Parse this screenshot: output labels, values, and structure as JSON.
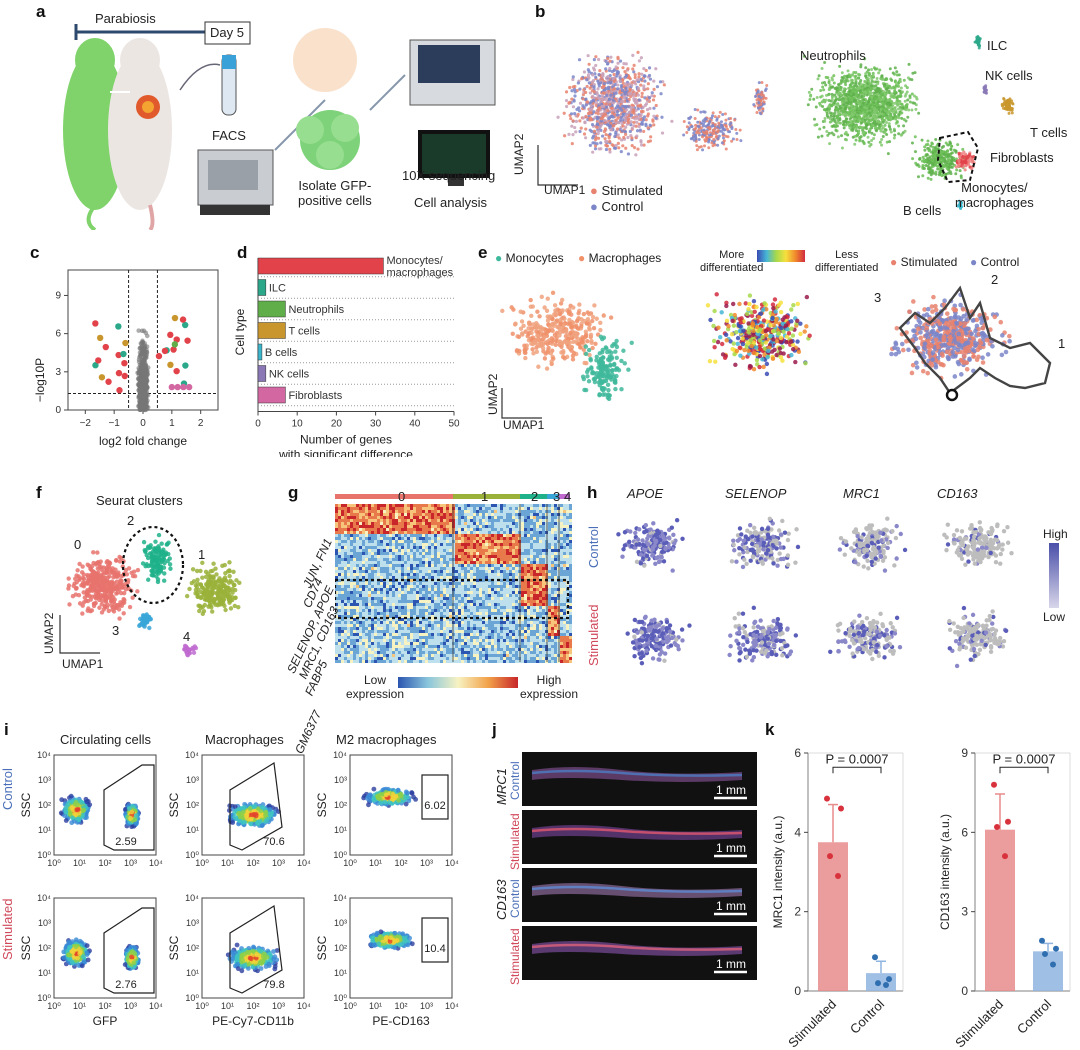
{
  "panels": {
    "a": "a",
    "b": "b",
    "c": "c",
    "d": "d",
    "e": "e",
    "f": "f",
    "g": "g",
    "h": "h",
    "i": "i",
    "j": "j",
    "k": "k"
  },
  "a": {
    "parabiosis": "Parabiosis",
    "day": "Day 5",
    "facs": "FACS",
    "isolate": "Isolate GFP-\npositive cells",
    "seq": "10X sequencing",
    "analysis": "Cell analysis"
  },
  "b": {
    "neutrophils": "Neutrophils",
    "ilc": "ILC",
    "nk": "NK cells",
    "t": "T cells",
    "fibro": "Fibroblasts",
    "mono": "Monocytes/\nmacrophages",
    "bcells": "B cells",
    "umap1": "UMAP1",
    "umap2": "UMAP2",
    "legend_stim": "Stimulated",
    "legend_ctrl": "Control",
    "color_stim": "#e8826f",
    "color_ctrl": "#7b86c9"
  },
  "c": {
    "xlabel": "log2 fold change",
    "ylabel": "−log10P",
    "xticks": [
      "−2",
      "−1",
      "0",
      "1",
      "2"
    ],
    "yticks": [
      "0",
      "3",
      "6",
      "9"
    ]
  },
  "d": {
    "ylabel": "Cell type",
    "xlabel": "Number of genes\nwith significant difference",
    "xticks": [
      "0",
      "10",
      "20",
      "30",
      "40",
      "50"
    ]
  },
  "e": {
    "legend_mono": "Monocytes",
    "legend_mac": "Macrophages",
    "more_diff": "More\ndifferentiated",
    "less_diff": "Less\ndifferentiated",
    "legend_stim": "Stimulated",
    "legend_ctrl": "Control",
    "umap1": "UMAP1",
    "umap2": "UMAP2",
    "traj": [
      "1",
      "2",
      "3"
    ]
  },
  "f": {
    "title": "Seurat clusters",
    "umap1": "UMAP1",
    "umap2": "UMAP2",
    "clusters": [
      "0",
      "1",
      "2",
      "3",
      "4"
    ]
  },
  "g": {
    "top": [
      "0",
      "1",
      "2",
      "3",
      "4"
    ],
    "genes": [
      "JUN, FN1",
      "CD74",
      "SELENOP, APOE\nMRC1, CD163",
      "FABP5",
      "GM6377"
    ],
    "low": "Low\nexpression",
    "high": "High\nexpression"
  },
  "h": {
    "genes": [
      "APOE",
      "SELENOP",
      "MRC1",
      "CD163"
    ],
    "row_ctrl": "Control",
    "row_stim": "Stimulated",
    "high": "High",
    "low": "Low"
  },
  "i": {
    "col_titles": [
      "Circulating cells",
      "Macrophages",
      "M2 macrophages"
    ],
    "row_ctrl": "Control",
    "row_stim": "Stimulated",
    "ylabel": "SSC",
    "xlabels": [
      "GFP",
      "PE-Cy7-CD11b",
      "PE-CD163"
    ],
    "values_ctrl": [
      "2.59",
      "70.6",
      "6.02"
    ],
    "values_stim": [
      "2.76",
      "79.8",
      "10.4"
    ],
    "yticks": [
      "10⁰",
      "10¹",
      "10²",
      "10³",
      "10⁴"
    ],
    "xticks": [
      "10⁰",
      "10¹",
      "10²",
      "10³",
      "10⁴"
    ]
  },
  "j": {
    "mrc1": "MRC1",
    "cd163": "CD163",
    "ctrl": "Control",
    "stim": "Stimulated",
    "scale": "1 mm"
  },
  "k": {
    "pvalue": "P = 0.0007",
    "ylabel_left": "MRC1 intensity (a.u.)",
    "ylabel_right": "CD163 intensity (a.u.)",
    "categories": [
      "Stimulated",
      "Control"
    ]
  },
  "chart_data": [
    {
      "type": "bar",
      "title": "",
      "categories": [
        "Monocytes/\nmacrophages",
        "ILC",
        "Neutrophils",
        "T cells",
        "B cells",
        "NK cells",
        "Fibroblasts"
      ],
      "values": [
        32,
        2,
        7,
        7,
        1,
        2,
        7
      ],
      "colors": [
        "#e2434a",
        "#2ba88a",
        "#5fae4a",
        "#c9962d",
        "#3bb6cc",
        "#8a78b6",
        "#d367a2"
      ],
      "xlabel": "Number of genes with significant difference",
      "ylabel": "Cell type",
      "xlim": [
        0,
        50
      ]
    },
    {
      "type": "bar",
      "categories": [
        "Stimulated",
        "Control"
      ],
      "values": [
        3.75,
        0.45
      ],
      "errors": [
        0.95,
        0.3
      ],
      "points": [
        [
          4.85,
          4.6,
          3.4,
          2.9
        ],
        [
          0.85,
          0.3,
          0.2,
          0.15
        ]
      ],
      "colors": [
        "#e88b8b",
        "#8fb4e0"
      ],
      "ylabel": "MRC1 intensity (a.u.)",
      "ylim": [
        0,
        6
      ],
      "yticks": [
        0,
        2,
        4,
        6
      ],
      "p": "P = 0.0007"
    },
    {
      "type": "bar",
      "categories": [
        "Stimulated",
        "Control"
      ],
      "values": [
        6.1,
        1.5
      ],
      "errors": [
        1.35,
        0.3
      ],
      "points": [
        [
          7.8,
          6.4,
          6.2,
          5.1
        ],
        [
          1.9,
          1.6,
          1.4,
          1.0
        ]
      ],
      "colors": [
        "#e88b8b",
        "#8fb4e0"
      ],
      "ylabel": "CD163 intensity (a.u.)",
      "ylim": [
        0,
        9
      ],
      "yticks": [
        0,
        3,
        6,
        9
      ],
      "p": "P = 0.0007"
    }
  ]
}
